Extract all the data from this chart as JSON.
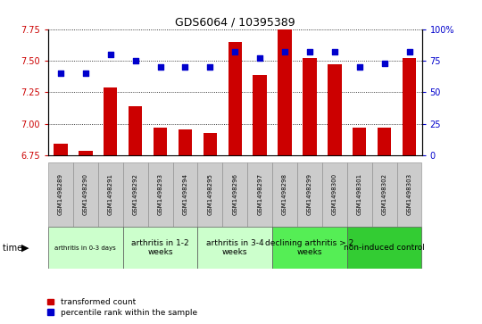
{
  "title": "GDS6064 / 10395389",
  "samples": [
    "GSM1498289",
    "GSM1498290",
    "GSM1498291",
    "GSM1498292",
    "GSM1498293",
    "GSM1498294",
    "GSM1498295",
    "GSM1498296",
    "GSM1498297",
    "GSM1498298",
    "GSM1498299",
    "GSM1498300",
    "GSM1498301",
    "GSM1498302",
    "GSM1498303"
  ],
  "transformed_count": [
    6.84,
    6.79,
    7.29,
    7.14,
    6.97,
    6.96,
    6.93,
    7.65,
    7.39,
    7.77,
    7.52,
    7.47,
    6.97,
    6.97,
    7.52
  ],
  "percentile_rank": [
    65,
    65,
    80,
    75,
    70,
    70,
    70,
    82,
    77,
    82,
    82,
    82,
    70,
    73,
    82
  ],
  "ylim_left": [
    6.75,
    7.75
  ],
  "ylim_right": [
    0,
    100
  ],
  "yticks_left": [
    6.75,
    7.0,
    7.25,
    7.5,
    7.75
  ],
  "yticks_right": [
    0,
    25,
    50,
    75,
    100
  ],
  "bar_color": "#cc0000",
  "dot_color": "#0000cc",
  "bar_bottom": 6.75,
  "groups": [
    {
      "label": "arthritis in 0-3 days",
      "start": 0,
      "end": 2,
      "color": "#ccffcc",
      "small_font": true
    },
    {
      "label": "arthritis in 1-2\nweeks",
      "start": 3,
      "end": 5,
      "color": "#ccffcc",
      "small_font": false
    },
    {
      "label": "arthritis in 3-4\nweeks",
      "start": 6,
      "end": 8,
      "color": "#ccffcc",
      "small_font": false
    },
    {
      "label": "declining arthritis > 2\nweeks",
      "start": 9,
      "end": 11,
      "color": "#55ee55",
      "small_font": false
    },
    {
      "label": "non-induced control",
      "start": 12,
      "end": 14,
      "color": "#33cc33",
      "small_font": false
    }
  ],
  "legend_bar_label": "transformed count",
  "legend_dot_label": "percentile rank within the sample",
  "sample_box_color": "#cccccc",
  "sample_box_edge": "#999999"
}
